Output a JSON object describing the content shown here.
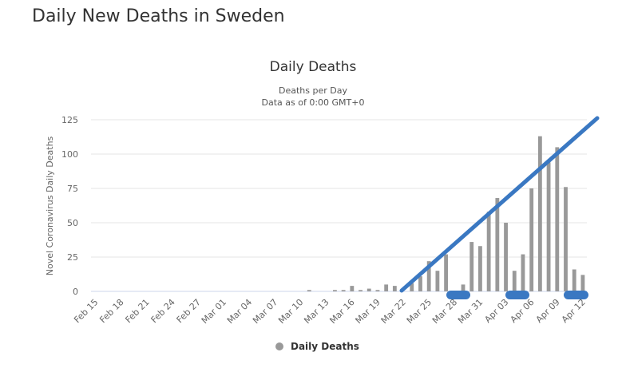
{
  "page": {
    "title": "Daily New Deaths in Sweden"
  },
  "chart_data": {
    "type": "bar",
    "title": "Daily Deaths",
    "subtitle_lines": [
      "Deaths per Day",
      "Data as of 0:00 GMT+0"
    ],
    "ylabel": "Novel Coronavirus Daily Deaths",
    "xlabel": "",
    "ylim": [
      0,
      125
    ],
    "yticks": [
      0,
      25,
      50,
      75,
      100,
      125
    ],
    "grid": true,
    "legend": {
      "position": "bottom-center",
      "entries": [
        "Daily Deaths"
      ]
    },
    "series_color": "#999999",
    "categories": [
      "Feb 15",
      "Feb 16",
      "Feb 17",
      "Feb 18",
      "Feb 19",
      "Feb 20",
      "Feb 21",
      "Feb 22",
      "Feb 23",
      "Feb 24",
      "Feb 25",
      "Feb 26",
      "Feb 27",
      "Feb 28",
      "Feb 29",
      "Mar 01",
      "Mar 02",
      "Mar 03",
      "Mar 04",
      "Mar 05",
      "Mar 06",
      "Mar 07",
      "Mar 08",
      "Mar 09",
      "Mar 10",
      "Mar 11",
      "Mar 12",
      "Mar 13",
      "Mar 14",
      "Mar 15",
      "Mar 16",
      "Mar 17",
      "Mar 18",
      "Mar 19",
      "Mar 20",
      "Mar 21",
      "Mar 22",
      "Mar 23",
      "Mar 24",
      "Mar 25",
      "Mar 26",
      "Mar 27",
      "Mar 28",
      "Mar 29",
      "Mar 30",
      "Mar 31",
      "Apr 01",
      "Apr 02",
      "Apr 03",
      "Apr 04",
      "Apr 05",
      "Apr 06",
      "Apr 07",
      "Apr 08",
      "Apr 09",
      "Apr 10",
      "Apr 11",
      "Apr 12"
    ],
    "tick_labels": [
      "Feb 15",
      "Feb 18",
      "Feb 21",
      "Feb 24",
      "Feb 27",
      "Mar 01",
      "Mar 04",
      "Mar 07",
      "Mar 10",
      "Mar 13",
      "Mar 16",
      "Mar 19",
      "Mar 22",
      "Mar 25",
      "Mar 28",
      "Mar 31",
      "Apr 03",
      "Apr 06",
      "Apr 09",
      "Apr 12"
    ],
    "series": [
      {
        "name": "Daily Deaths",
        "values": [
          0,
          0,
          0,
          0,
          0,
          0,
          0,
          0,
          0,
          0,
          0,
          0,
          0,
          0,
          0,
          0,
          0,
          0,
          0,
          0,
          0,
          0,
          0,
          0,
          0,
          1,
          0,
          0,
          1,
          1,
          4,
          1,
          2,
          1,
          5,
          4,
          0,
          6,
          11,
          22,
          15,
          27,
          0,
          5,
          36,
          33,
          58,
          68,
          50,
          15,
          27,
          75,
          113,
          94,
          105,
          76,
          16,
          12
        ]
      }
    ]
  },
  "annotation_color": "#3a78c2"
}
